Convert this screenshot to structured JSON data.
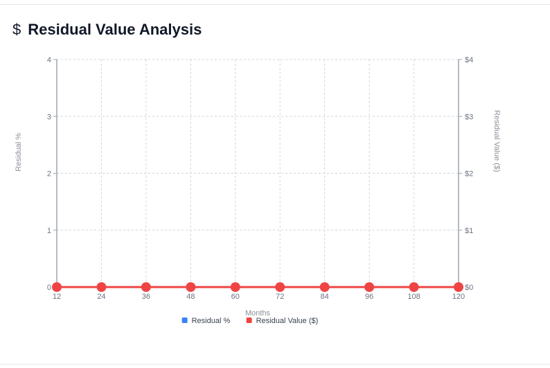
{
  "header": {
    "icon": "dollar-icon",
    "title": "Residual Value Analysis"
  },
  "chart_data": {
    "type": "line",
    "x": [
      12,
      24,
      36,
      48,
      60,
      72,
      84,
      96,
      108,
      120
    ],
    "xlabel": "Months",
    "ylabel_left": "Residual %",
    "ylabel_right": "Residual Value ($)",
    "ylim_left": [
      0,
      4
    ],
    "ylim_right": [
      0,
      4
    ],
    "yticks_left": [
      "0",
      "1",
      "2",
      "3",
      "4"
    ],
    "yticks_right": [
      "$0",
      "$1",
      "$2",
      "$3",
      "$4"
    ],
    "grid": true,
    "legend_position": "bottom",
    "series": [
      {
        "name": "Residual %",
        "axis": "left",
        "color": "#3b82f6",
        "values": [
          0,
          0,
          0,
          0,
          0,
          0,
          0,
          0,
          0,
          0
        ]
      },
      {
        "name": "Residual Value ($)",
        "axis": "right",
        "color": "#ef4444",
        "values": [
          0,
          0,
          0,
          0,
          0,
          0,
          0,
          0,
          0,
          0
        ]
      }
    ]
  }
}
